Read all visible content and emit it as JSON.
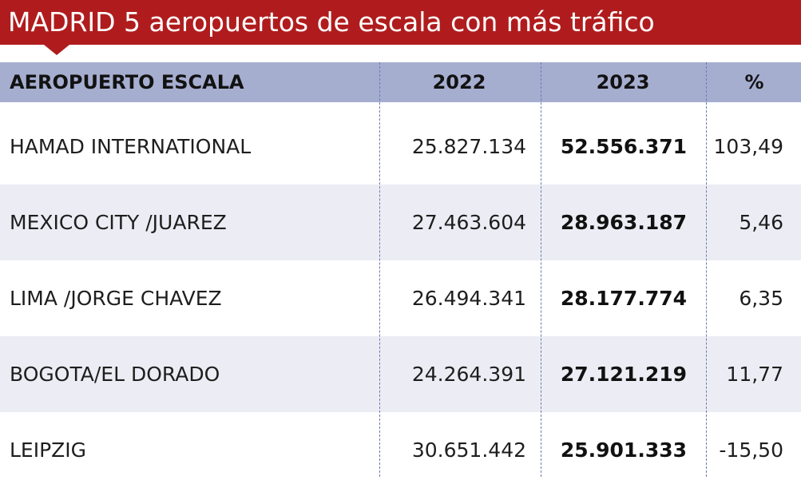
{
  "title": "MADRID 5 aeropuertos de escala con más tráfico",
  "colors": {
    "title_bg": "#b01c1d",
    "header_bg": "#a6aed0",
    "row_shade": "#ecedf4",
    "divider": "#6d78b4"
  },
  "chart_data": {
    "type": "table",
    "title": "MADRID 5 aeropuertos de escala con más tráfico",
    "columns": [
      "AEROPUERTO ESCALA",
      "2022",
      "2023",
      "%"
    ],
    "rows": [
      {
        "airport": "HAMAD INTERNATIONAL",
        "y2022": "25.827.134",
        "y2023": "52.556.371",
        "pct": "103,49"
      },
      {
        "airport": "MEXICO CITY /JUAREZ",
        "y2022": "27.463.604",
        "y2023": "28.963.187",
        "pct": "5,46"
      },
      {
        "airport": "LIMA /JORGE CHAVEZ",
        "y2022": "26.494.341",
        "y2023": "28.177.774",
        "pct": "6,35"
      },
      {
        "airport": "BOGOTA/EL DORADO",
        "y2022": "24.264.391",
        "y2023": "27.121.219",
        "pct": "11,77"
      },
      {
        "airport": "LEIPZIG",
        "y2022": "30.651.442",
        "y2023": "25.901.333",
        "pct": "-15,50"
      }
    ]
  }
}
